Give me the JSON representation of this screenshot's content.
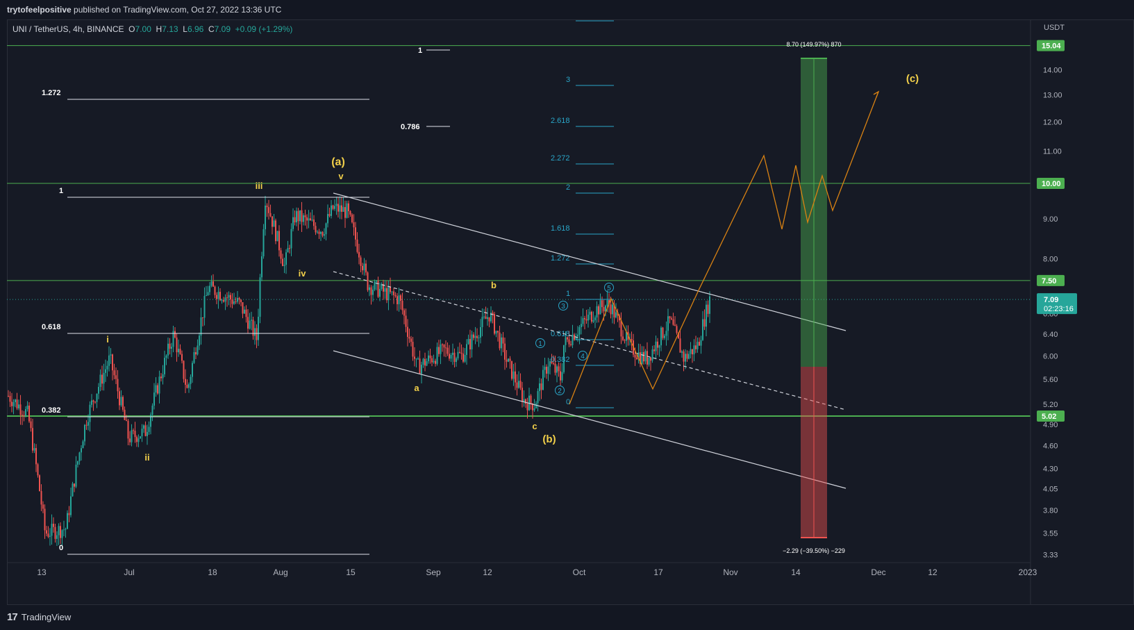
{
  "topbar": {
    "author": "trytofeelpositive",
    "text": "published on TradingView.com, Oct 27, 2022 13:36 UTC"
  },
  "legend": {
    "symbol": "UNI / TetherUS, 4h, BINANCE",
    "o_label": "O",
    "o": "7.00",
    "h_label": "H",
    "h": "7.13",
    "l_label": "L",
    "l": "6.96",
    "c_label": "C",
    "c": "7.09",
    "change": "+0.09 (+1.29%)"
  },
  "colors": {
    "up": "#26a69a",
    "down": "#ef5350",
    "accent_green": "#4caf50",
    "wave_yellow": "#f2d04a",
    "fib_cyan": "#2aa7c9",
    "projection_orange": "#d98213"
  },
  "price_axis": {
    "unit": "USDT",
    "ticks": [
      "14.00",
      "13.00",
      "12.00",
      "11.00",
      "10.00",
      "9.00",
      "8.00",
      "7.50",
      "6.80",
      "6.40",
      "6.00",
      "5.60",
      "5.20",
      "4.90",
      "4.60",
      "4.30",
      "4.05",
      "3.80",
      "3.55",
      "3.33"
    ],
    "badges": [
      {
        "label": "15.04",
        "kind": "green"
      },
      {
        "label": "10.00",
        "kind": "green"
      },
      {
        "label": "7.50",
        "kind": "green"
      },
      {
        "label": "5.02",
        "kind": "green"
      }
    ],
    "last_price": "7.09",
    "countdown": "02:23:16"
  },
  "time_axis": {
    "labels": [
      "13",
      "Jul",
      "18",
      "Aug",
      "15",
      "Sep",
      "12",
      "Oct",
      "17",
      "Nov",
      "14",
      "Dec",
      "12",
      "2023"
    ]
  },
  "fib_left": {
    "levels": [
      "1.272",
      "1",
      "0.618",
      "0.382",
      "0"
    ]
  },
  "fib_mid": {
    "levels": [
      "1",
      "0.786"
    ]
  },
  "fib_cyan": {
    "levels": [
      "3",
      "2.618",
      "2.272",
      "2",
      "1.618",
      "1.272",
      "1",
      "0.618",
      "0.382",
      "0"
    ]
  },
  "waves": {
    "yellow": [
      "(a)",
      "v",
      "iii",
      "iv",
      "i",
      "ii",
      "b",
      "a",
      "c",
      "(b)",
      "(c)"
    ],
    "circled": [
      "1",
      "2",
      "3",
      "4",
      "5"
    ]
  },
  "position": {
    "target_label": "8.70 (149.97%) 870",
    "stop_label": "−2.29 (−39.50%) −229"
  },
  "footer": {
    "brand": "TradingView"
  }
}
